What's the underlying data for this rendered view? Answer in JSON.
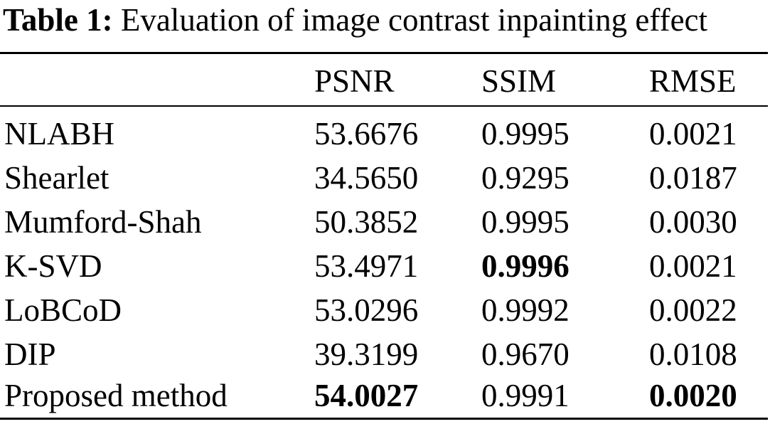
{
  "caption": {
    "label": "Table 1:",
    "text": "Evaluation of image contrast inpainting effect"
  },
  "table": {
    "headers": [
      "",
      "PSNR",
      "SSIM",
      "RMSE"
    ],
    "rows": [
      {
        "method": "NLABH",
        "psnr": "53.6676",
        "ssim": "0.9995",
        "rmse": "0.0021"
      },
      {
        "method": "Shearlet",
        "psnr": "34.5650",
        "ssim": "0.9295",
        "rmse": "0.0187"
      },
      {
        "method": "Mumford-Shah",
        "psnr": "50.3852",
        "ssim": "0.9995",
        "rmse": "0.0030"
      },
      {
        "method": "K-SVD",
        "psnr": "53.4971",
        "ssim": "0.9996",
        "rmse": "0.0021"
      },
      {
        "method": "LoBCoD",
        "psnr": "53.0296",
        "ssim": "0.9992",
        "rmse": "0.0022"
      },
      {
        "method": "DIP",
        "psnr": "39.3199",
        "ssim": "0.9670",
        "rmse": "0.0108"
      },
      {
        "method": "Proposed method",
        "psnr": "54.0027",
        "ssim": "0.9991",
        "rmse": "0.0020"
      }
    ],
    "best": {
      "psnr": "Proposed method",
      "ssim": "K-SVD",
      "rmse": "Proposed method"
    }
  }
}
